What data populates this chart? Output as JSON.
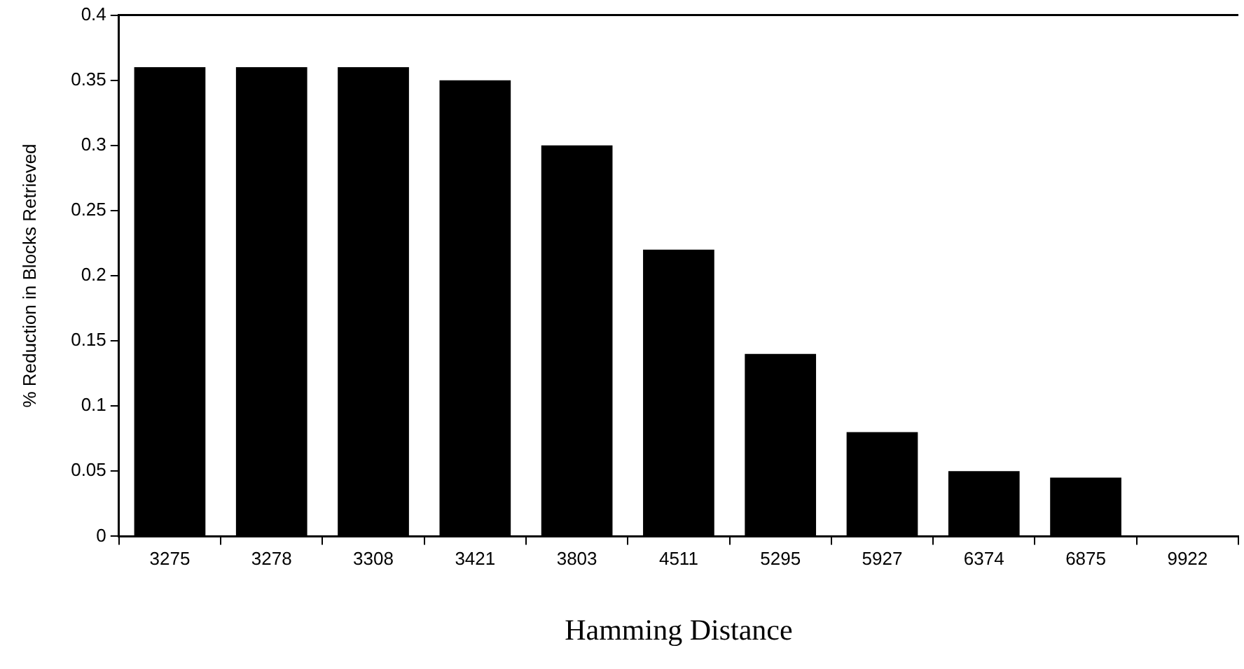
{
  "chart_data": {
    "type": "bar",
    "xlabel": "Hamming Distance",
    "ylabel": "% Reduction in Blocks Retrieved",
    "categories": [
      "3275",
      "3278",
      "3308",
      "3421",
      "3803",
      "4511",
      "5295",
      "5927",
      "6374",
      "6875",
      "9922"
    ],
    "values": [
      0.36,
      0.36,
      0.36,
      0.35,
      0.3,
      0.22,
      0.14,
      0.08,
      0.05,
      0.045,
      0
    ],
    "color": "#000000",
    "ylim": [
      0,
      0.4
    ],
    "yticks": [
      0,
      0.05,
      0.1,
      0.15,
      0.2,
      0.25,
      0.3,
      0.35,
      0.4
    ],
    "grid": false,
    "legend": false
  }
}
